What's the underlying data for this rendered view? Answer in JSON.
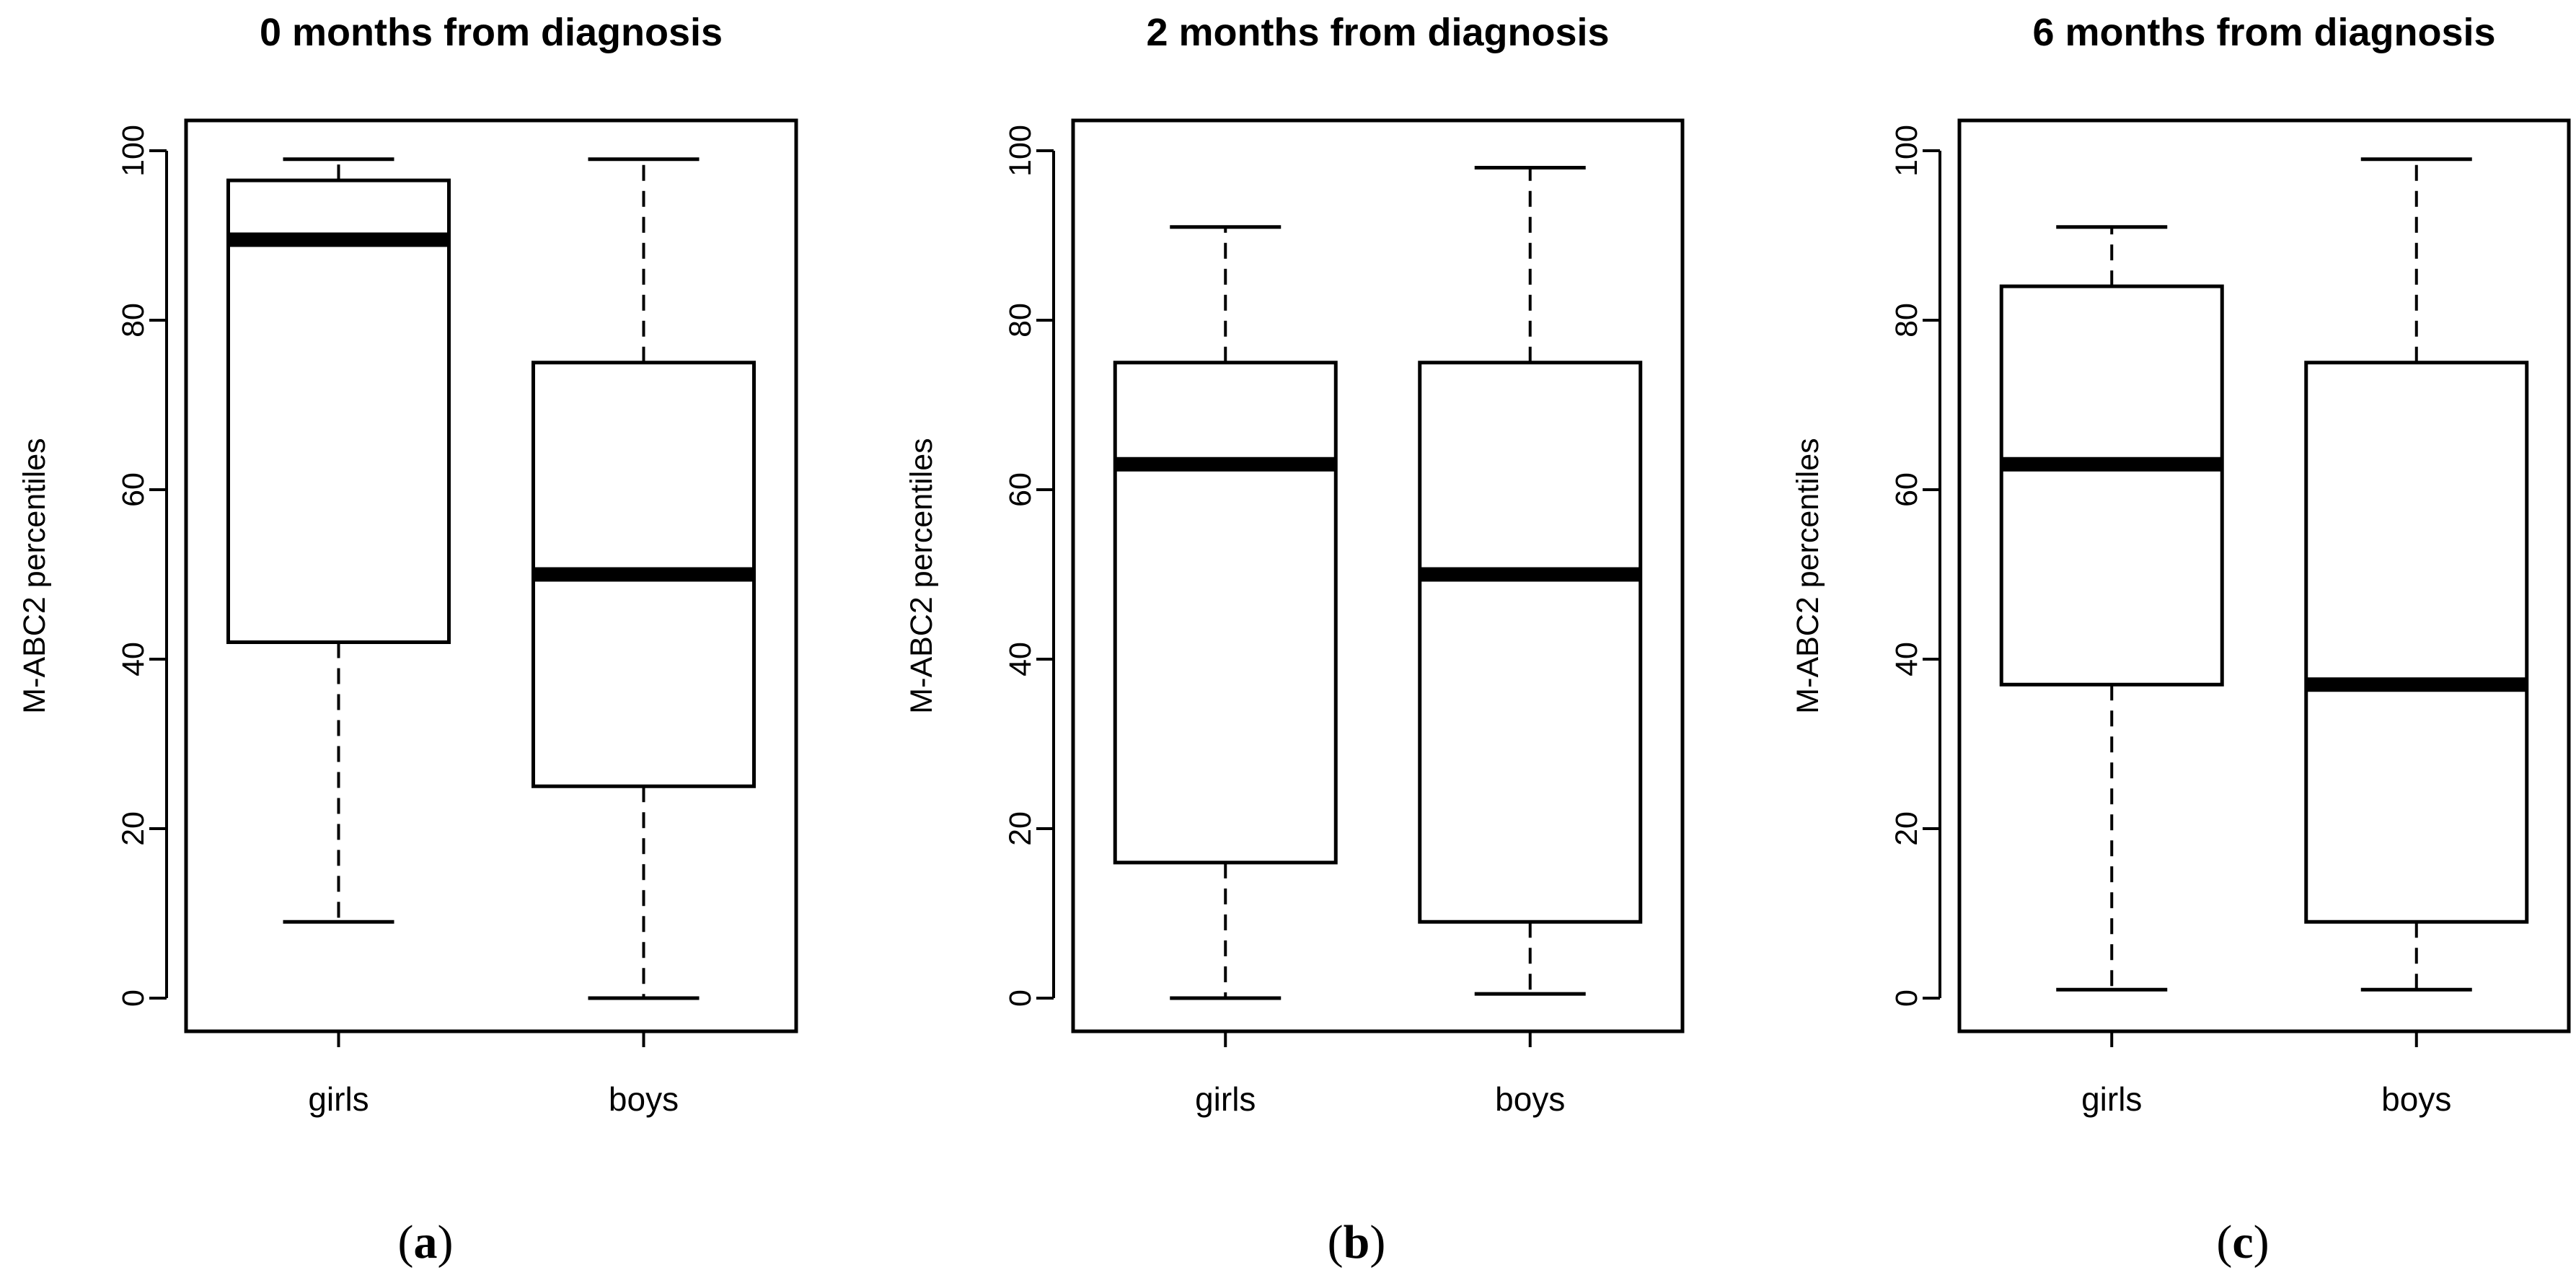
{
  "chart_data": [
    {
      "type": "boxplot",
      "panel_label": "a",
      "title": "0 months from diagnosis",
      "ylabel": "M-ABC2 percentiles",
      "xlabel": "",
      "ylim": [
        0,
        100
      ],
      "yticks": [
        0,
        20,
        40,
        60,
        80,
        100
      ],
      "grid": false,
      "categories": [
        "girls",
        "boys"
      ],
      "boxes": [
        {
          "name": "girls",
          "min": 9,
          "q1": 42,
          "median": 89.5,
          "q3": 96.5,
          "max": 99
        },
        {
          "name": "boys",
          "min": 0,
          "q1": 25,
          "median": 50,
          "q3": 75,
          "max": 99
        }
      ]
    },
    {
      "type": "boxplot",
      "panel_label": "b",
      "title": "2 months from diagnosis",
      "ylabel": "M-ABC2 percentiles",
      "xlabel": "",
      "ylim": [
        0,
        100
      ],
      "yticks": [
        0,
        20,
        40,
        60,
        80,
        100
      ],
      "grid": false,
      "categories": [
        "girls",
        "boys"
      ],
      "boxes": [
        {
          "name": "girls",
          "min": 0,
          "q1": 16,
          "median": 63,
          "q3": 75,
          "max": 91
        },
        {
          "name": "boys",
          "min": 0.5,
          "q1": 9,
          "median": 50,
          "q3": 75,
          "max": 98
        }
      ]
    },
    {
      "type": "boxplot",
      "panel_label": "c",
      "title": "6 months from diagnosis",
      "ylabel": "M-ABC2 percentiles",
      "xlabel": "",
      "ylim": [
        0,
        100
      ],
      "yticks": [
        0,
        20,
        40,
        60,
        80,
        100
      ],
      "grid": false,
      "categories": [
        "girls",
        "boys"
      ],
      "boxes": [
        {
          "name": "girls",
          "min": 1,
          "q1": 37,
          "median": 63,
          "q3": 84,
          "max": 91
        },
        {
          "name": "boys",
          "min": 1,
          "q1": 9,
          "median": 37,
          "q3": 75,
          "max": 99
        }
      ]
    }
  ]
}
